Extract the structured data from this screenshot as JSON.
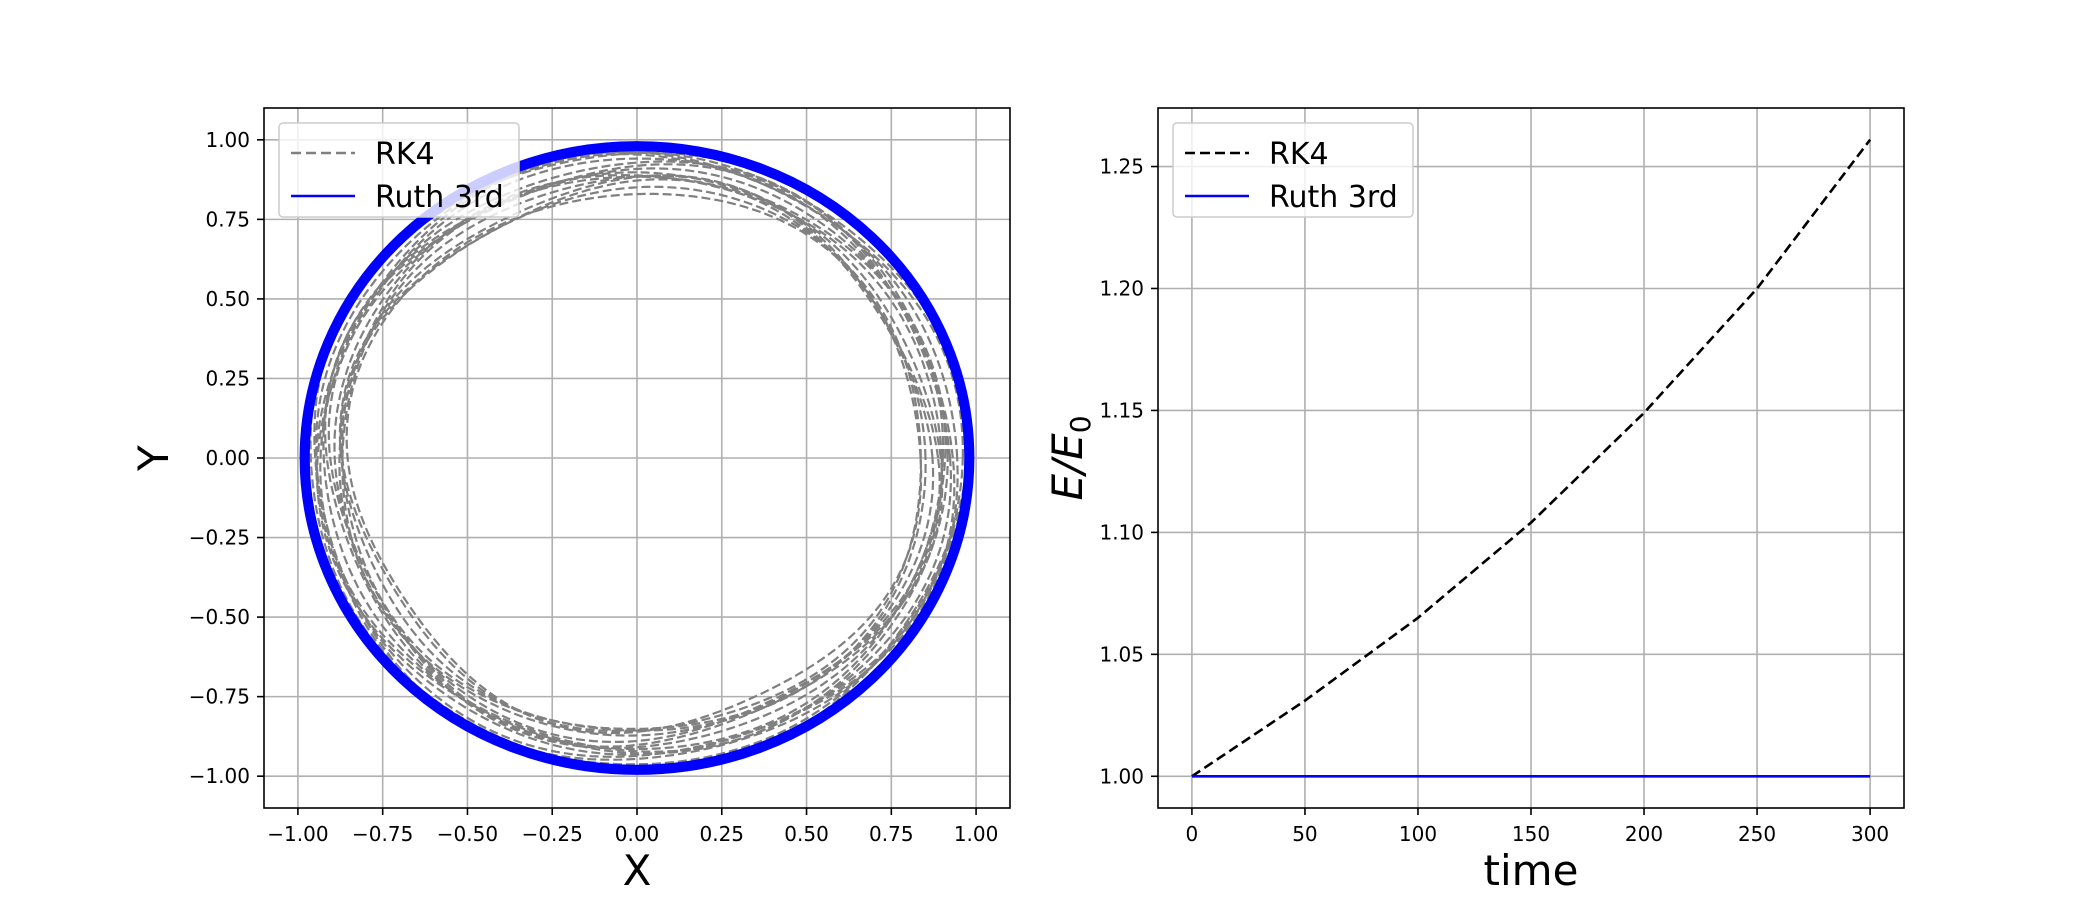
{
  "chart_data": [
    {
      "type": "line",
      "xlabel": "X",
      "ylabel": "Y",
      "xlim": [
        -1.1,
        1.1
      ],
      "ylim": [
        -1.1,
        1.1
      ],
      "xticks": [
        -1.0,
        -0.75,
        -0.5,
        -0.25,
        0.0,
        0.25,
        0.5,
        0.75,
        1.0
      ],
      "yticks": [
        -1.0,
        -0.75,
        -0.5,
        -0.25,
        0.0,
        0.25,
        0.5,
        0.75,
        1.0
      ],
      "xtick_labels": [
        "−1.00",
        "−0.75",
        "−0.50",
        "−0.25",
        "0.00",
        "0.25",
        "0.50",
        "0.75",
        "1.00"
      ],
      "ytick_labels": [
        "−1.00",
        "−0.75",
        "−0.50",
        "−0.25",
        "0.00",
        "0.25",
        "0.50",
        "0.75",
        "1.00"
      ],
      "grid": true,
      "legend": "upper-left",
      "series": [
        {
          "name": "RK4",
          "style": "dashed",
          "color": "#808080",
          "shape": "orbit band",
          "r_min": 0.86,
          "r_max": 0.97
        },
        {
          "name": "Ruth 3rd",
          "style": "solid",
          "color": "#0000ff",
          "shape": "circle",
          "r_min": 0.965,
          "r_max": 0.995
        }
      ]
    },
    {
      "type": "line",
      "xlabel": "time",
      "ylabel": "E/E0",
      "xlim": [
        -15,
        315
      ],
      "ylim": [
        0.987,
        1.274
      ],
      "xticks": [
        0,
        50,
        100,
        150,
        200,
        250,
        300
      ],
      "yticks": [
        1.0,
        1.05,
        1.1,
        1.15,
        1.2,
        1.25
      ],
      "xtick_labels": [
        "0",
        "50",
        "100",
        "150",
        "200",
        "250",
        "300"
      ],
      "ytick_labels": [
        "1.00",
        "1.05",
        "1.10",
        "1.15",
        "1.20",
        "1.25"
      ],
      "grid": true,
      "legend": "upper-left",
      "series": [
        {
          "name": "RK4",
          "style": "dashed",
          "color": "#000000",
          "x": [
            0,
            50,
            100,
            150,
            200,
            250,
            300
          ],
          "y": [
            1.0,
            1.031,
            1.065,
            1.104,
            1.149,
            1.2,
            1.261
          ]
        },
        {
          "name": "Ruth 3rd",
          "style": "solid",
          "color": "#0000ff",
          "x": [
            0,
            300
          ],
          "y": [
            1.0,
            1.0
          ]
        }
      ]
    }
  ]
}
